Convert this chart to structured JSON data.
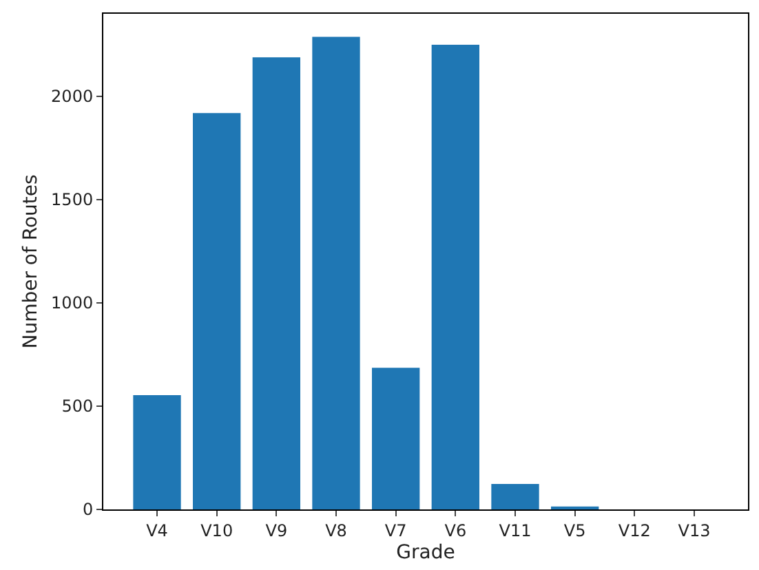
{
  "chart_data": {
    "type": "bar",
    "xlabel": "Grade",
    "ylabel": "Number of Routes",
    "categories": [
      "V4",
      "V10",
      "V9",
      "V8",
      "V7",
      "V6",
      "V11",
      "V5",
      "V12",
      "V13"
    ],
    "values": [
      553,
      1919,
      2189,
      2288,
      686,
      2250,
      123,
      14,
      0,
      0
    ],
    "color": "#1f77b4",
    "ylim": [
      0,
      2400
    ],
    "yticks": [
      0,
      500,
      1000,
      1500,
      2000
    ]
  }
}
